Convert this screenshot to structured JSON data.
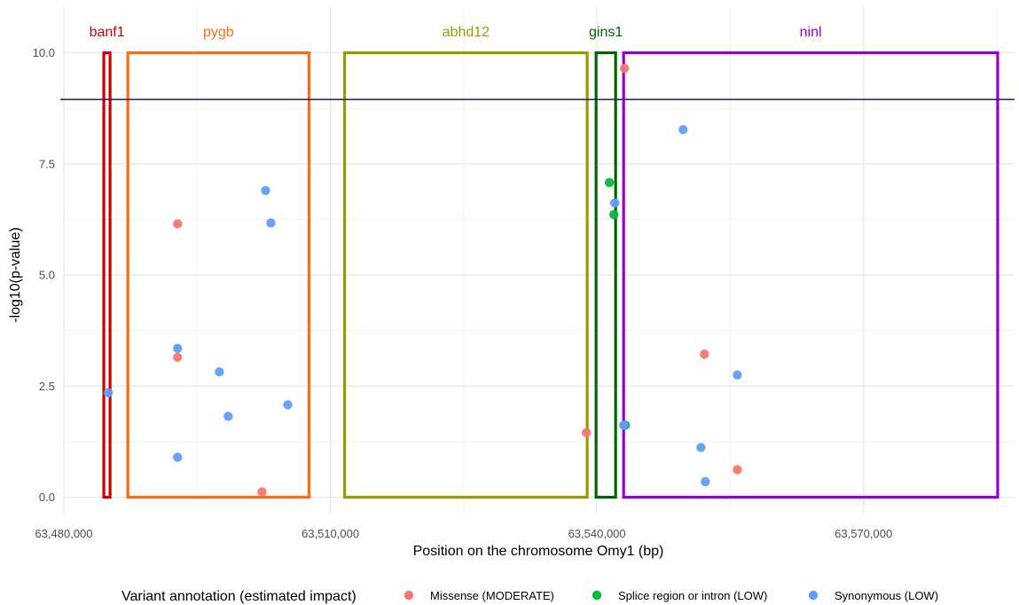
{
  "chart_data": {
    "type": "scatter",
    "xlabel": "Position on the chromosome Omy1 (bp)",
    "ylabel": "-log10(p-value)",
    "xlim": [
      63480000,
      63587000
    ],
    "ylim": [
      0,
      10
    ],
    "x_ticks": [
      63480000,
      63510000,
      63540000,
      63570000
    ],
    "x_tick_labels": [
      "63,480,000",
      "63,510,000",
      "63,540,000",
      "63,570,000"
    ],
    "y_ticks": [
      0,
      2.5,
      5,
      7.5,
      10
    ],
    "y_tick_labels": [
      "0.0",
      "2.5",
      "5.0",
      "7.5",
      "10.0"
    ],
    "grid": true,
    "threshold": {
      "y": 8.95,
      "color": "#1a1a6e"
    },
    "genes": [
      {
        "name": "banf1",
        "start": 63484500,
        "end": 63485200,
        "color": "#cc0000"
      },
      {
        "name": "pygb",
        "start": 63487200,
        "end": 63507600,
        "color": "#ff6a13"
      },
      {
        "name": "abhd12",
        "start": 63511600,
        "end": 63538900,
        "color": "#999900"
      },
      {
        "name": "gins1",
        "start": 63539900,
        "end": 63542100,
        "color": "#006400"
      },
      {
        "name": "ninl",
        "start": 63543000,
        "end": 63585100,
        "color": "#9400d3"
      }
    ],
    "legend": {
      "title": "Variant annotation (estimated impact)",
      "position": "bottom"
    },
    "series": [
      {
        "name": "Missense (MODERATE)",
        "color": "#f8766d",
        "points": [
          [
            63492800,
            6.15
          ],
          [
            63492800,
            3.15
          ],
          [
            63502300,
            0.12
          ],
          [
            63538800,
            1.45
          ],
          [
            63543100,
            9.65
          ],
          [
            63552100,
            3.22
          ],
          [
            63555800,
            0.62
          ]
        ]
      },
      {
        "name": "Splice region or intron (LOW)",
        "color": "#00ba38",
        "points": [
          [
            63541400,
            7.08
          ],
          [
            63541900,
            6.36
          ],
          [
            63543200,
            1.62
          ]
        ]
      },
      {
        "name": "Synonymous (LOW)",
        "color": "#619cff",
        "points": [
          [
            63485000,
            2.35
          ],
          [
            63492800,
            3.35
          ],
          [
            63492800,
            0.9
          ],
          [
            63497500,
            2.82
          ],
          [
            63498500,
            1.82
          ],
          [
            63502700,
            6.9
          ],
          [
            63503300,
            6.17
          ],
          [
            63505200,
            2.08
          ],
          [
            63542000,
            6.62
          ],
          [
            63543000,
            1.62
          ],
          [
            63549700,
            8.27
          ],
          [
            63551700,
            1.12
          ],
          [
            63552200,
            0.35
          ],
          [
            63555800,
            2.75
          ]
        ]
      }
    ]
  }
}
